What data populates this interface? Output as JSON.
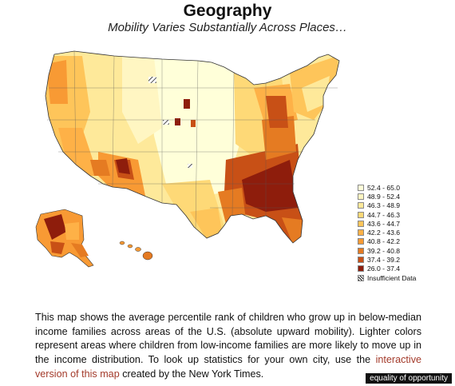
{
  "title": "Geography",
  "subtitle": "Mobility Varies Substantially Across Places…",
  "legend": {
    "items": [
      {
        "label": "52.4 - 65.0",
        "color": "#ffffd9"
      },
      {
        "label": "48.9 - 52.4",
        "color": "#fff6c2"
      },
      {
        "label": "46.3 - 48.9",
        "color": "#fee99a"
      },
      {
        "label": "44.7 - 46.3",
        "color": "#fed977"
      },
      {
        "label": "43.6 - 44.7",
        "color": "#fec55a"
      },
      {
        "label": "42.2 - 43.6",
        "color": "#feb147"
      },
      {
        "label": "40.8 - 42.2",
        "color": "#f89a34"
      },
      {
        "label": "39.2 - 40.8",
        "color": "#e57b22"
      },
      {
        "label": "37.4 - 39.2",
        "color": "#c85016"
      },
      {
        "label": "26.0 - 37.4",
        "color": "#8e1d0c"
      }
    ],
    "insufficient_label": "Insufficient Data"
  },
  "description": {
    "text_before": "This map shows the average percentile rank of children who grow up in below-median income families across areas of the U.S. (absolute upward mobility). Lighter colors represent areas where children from low-income families are more likely to move up in the income distribution. To look up statistics for your own city, use the ",
    "link_text": "interactive version of this map",
    "text_after": " created by the New York Times."
  },
  "watermark": "equality of opportunity"
}
